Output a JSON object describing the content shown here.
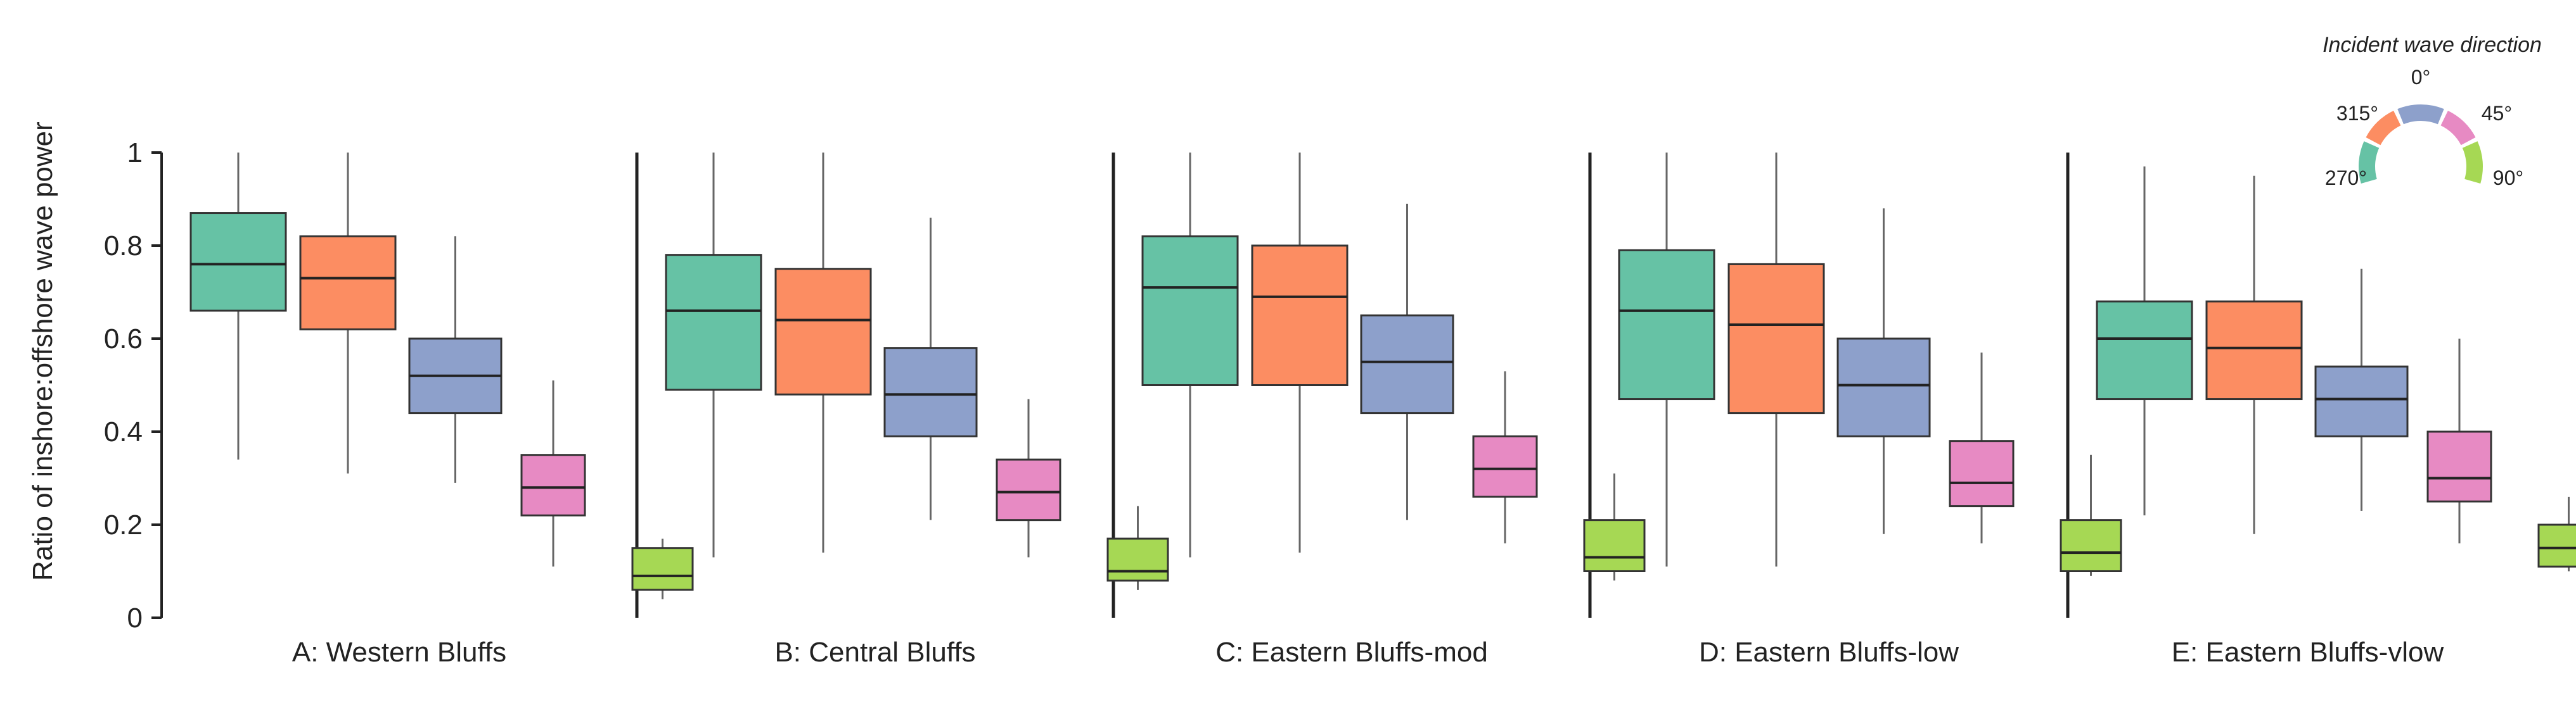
{
  "chart_data": {
    "type": "box",
    "ylabel": "Ratio of inshore:offshore wave power",
    "ylim": [
      0,
      1
    ],
    "yticks": [
      "0",
      "0.2",
      "0.4",
      "0.6",
      "0.8",
      "1"
    ],
    "legend": {
      "title": "Incident wave direction",
      "entries": [
        {
          "label": "270°",
          "color": "#66c2a5"
        },
        {
          "label": "315°",
          "color": "#fc8d62"
        },
        {
          "label": "0°",
          "color": "#8da0cb"
        },
        {
          "label": "45°",
          "color": "#e78ac3"
        },
        {
          "label": "90°",
          "color": "#a6d854"
        }
      ]
    },
    "series_colors": [
      "#66c2a5",
      "#fc8d62",
      "#8da0cb",
      "#e78ac3",
      "#a6d854"
    ],
    "panels": [
      {
        "label": "A: Western Bluffs",
        "boxes": [
          {
            "direction": "270°",
            "min": 0.34,
            "q1": 0.66,
            "median": 0.76,
            "q3": 0.87,
            "max": 1.0
          },
          {
            "direction": "315°",
            "min": 0.31,
            "q1": 0.62,
            "median": 0.73,
            "q3": 0.82,
            "max": 1.0
          },
          {
            "direction": "0°",
            "min": 0.29,
            "q1": 0.44,
            "median": 0.52,
            "q3": 0.6,
            "max": 0.82
          },
          {
            "direction": "45°",
            "min": 0.11,
            "q1": 0.22,
            "median": 0.28,
            "q3": 0.35,
            "max": 0.51
          },
          {
            "direction": "90°",
            "min": 0.04,
            "q1": 0.06,
            "median": 0.09,
            "q3": 0.15,
            "max": 0.17
          }
        ]
      },
      {
        "label": "B: Central Bluffs",
        "boxes": [
          {
            "direction": "270°",
            "min": 0.13,
            "q1": 0.49,
            "median": 0.66,
            "q3": 0.78,
            "max": 1.0
          },
          {
            "direction": "315°",
            "min": 0.14,
            "q1": 0.48,
            "median": 0.64,
            "q3": 0.75,
            "max": 1.0
          },
          {
            "direction": "0°",
            "min": 0.21,
            "q1": 0.39,
            "median": 0.48,
            "q3": 0.58,
            "max": 0.86
          },
          {
            "direction": "45°",
            "min": 0.13,
            "q1": 0.21,
            "median": 0.27,
            "q3": 0.34,
            "max": 0.47
          },
          {
            "direction": "90°",
            "min": 0.06,
            "q1": 0.08,
            "median": 0.1,
            "q3": 0.17,
            "max": 0.24
          }
        ]
      },
      {
        "label": "C: Eastern Bluffs-mod",
        "boxes": [
          {
            "direction": "270°",
            "min": 0.13,
            "q1": 0.5,
            "median": 0.71,
            "q3": 0.82,
            "max": 1.0
          },
          {
            "direction": "315°",
            "min": 0.14,
            "q1": 0.5,
            "median": 0.69,
            "q3": 0.8,
            "max": 1.0
          },
          {
            "direction": "0°",
            "min": 0.21,
            "q1": 0.44,
            "median": 0.55,
            "q3": 0.65,
            "max": 0.89
          },
          {
            "direction": "45°",
            "min": 0.16,
            "q1": 0.26,
            "median": 0.32,
            "q3": 0.39,
            "max": 0.53
          },
          {
            "direction": "90°",
            "min": 0.08,
            "q1": 0.1,
            "median": 0.13,
            "q3": 0.21,
            "max": 0.31
          }
        ]
      },
      {
        "label": "D: Eastern Bluffs-low",
        "boxes": [
          {
            "direction": "270°",
            "min": 0.11,
            "q1": 0.47,
            "median": 0.66,
            "q3": 0.79,
            "max": 1.0
          },
          {
            "direction": "315°",
            "min": 0.11,
            "q1": 0.44,
            "median": 0.63,
            "q3": 0.76,
            "max": 1.0
          },
          {
            "direction": "0°",
            "min": 0.18,
            "q1": 0.39,
            "median": 0.5,
            "q3": 0.6,
            "max": 0.88
          },
          {
            "direction": "45°",
            "min": 0.16,
            "q1": 0.24,
            "median": 0.29,
            "q3": 0.38,
            "max": 0.57
          },
          {
            "direction": "90°",
            "min": 0.09,
            "q1": 0.1,
            "median": 0.14,
            "q3": 0.21,
            "max": 0.35
          }
        ]
      },
      {
        "label": "E: Eastern Bluffs-vlow",
        "boxes": [
          {
            "direction": "270°",
            "min": 0.22,
            "q1": 0.47,
            "median": 0.6,
            "q3": 0.68,
            "max": 0.97
          },
          {
            "direction": "315°",
            "min": 0.18,
            "q1": 0.47,
            "median": 0.58,
            "q3": 0.68,
            "max": 0.95
          },
          {
            "direction": "0°",
            "min": 0.23,
            "q1": 0.39,
            "median": 0.47,
            "q3": 0.54,
            "max": 0.75
          },
          {
            "direction": "45°",
            "min": 0.16,
            "q1": 0.25,
            "median": 0.3,
            "q3": 0.4,
            "max": 0.6
          },
          {
            "direction": "90°",
            "min": 0.1,
            "q1": 0.11,
            "median": 0.15,
            "q3": 0.2,
            "max": 0.26
          }
        ]
      }
    ]
  }
}
